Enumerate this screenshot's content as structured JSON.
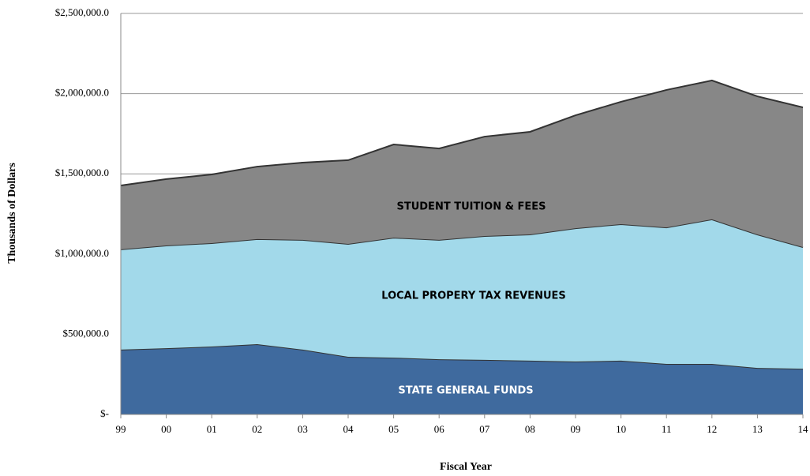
{
  "chart_data": {
    "type": "stacked-area",
    "x_label": "Fiscal Year",
    "y_label": "Thousands of Dollars",
    "categories": [
      "99",
      "00",
      "01",
      "02",
      "03",
      "04",
      "05",
      "06",
      "07",
      "08",
      "09",
      "10",
      "11",
      "12",
      "13",
      "14"
    ],
    "series": [
      {
        "name": "STATE GENERAL FUNDS",
        "color": "#3f6a9e",
        "values": [
          404000,
          413000,
          423000,
          438000,
          404000,
          359000,
          354000,
          344000,
          340000,
          335000,
          330000,
          335000,
          315000,
          315000,
          290000,
          285000
        ]
      },
      {
        "name": "LOCAL PROPERY TAX REVENUES",
        "color": "#a2d9ea",
        "values": [
          625000,
          640000,
          645000,
          655000,
          684000,
          704000,
          748000,
          744000,
          772000,
          787000,
          831000,
          851000,
          851000,
          901000,
          832000,
          758000
        ]
      },
      {
        "name": "STUDENT TUITION & FEES",
        "color": "#878787",
        "values": [
          398000,
          414000,
          428000,
          452000,
          482000,
          522000,
          581000,
          570000,
          620000,
          640000,
          704000,
          763000,
          857000,
          866000,
          861000,
          871000
        ]
      }
    ],
    "ylim": [
      0,
      2500000
    ],
    "yticks": [
      {
        "value": 0,
        "label": "$-"
      },
      {
        "value": 500000,
        "label": "$500,000.0"
      },
      {
        "value": 1000000,
        "label": "$1,000,000.0"
      },
      {
        "value": 1500000,
        "label": "$1,500,000.0"
      },
      {
        "value": 2000000,
        "label": "$2,000,000.0"
      },
      {
        "value": 2500000,
        "label": "$2,500,000.0"
      }
    ],
    "grid": true
  }
}
